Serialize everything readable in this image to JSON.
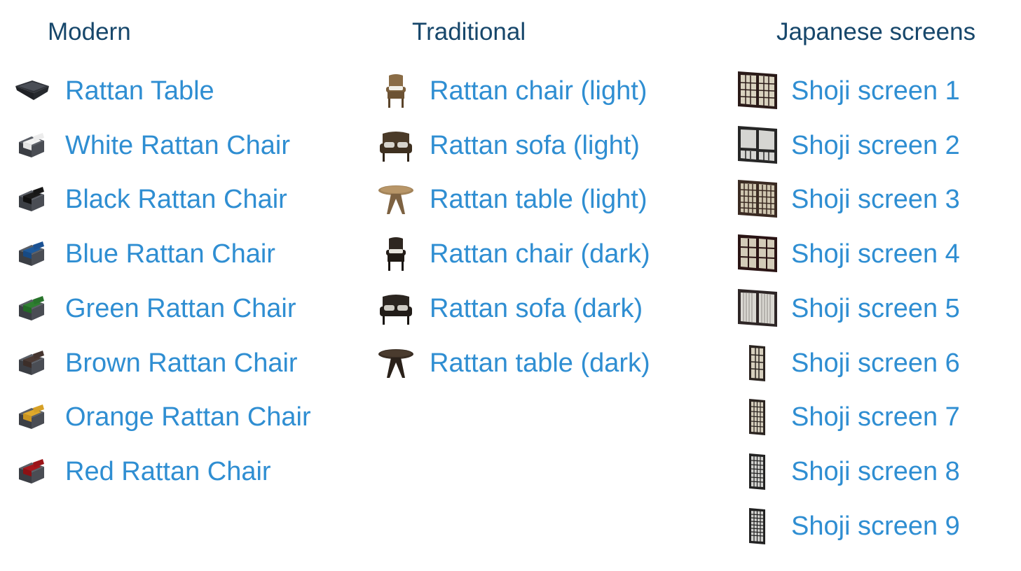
{
  "columns": [
    {
      "id": "modern",
      "title": "Modern",
      "items": [
        {
          "label": "Rattan Table",
          "icon": "rattan-table-modern-icon",
          "color": "#3a3d44"
        },
        {
          "label": "White Rattan Chair",
          "icon": "chair-white-icon",
          "color": "#f2f2f2"
        },
        {
          "label": "Black Rattan Chair",
          "icon": "chair-black-icon",
          "color": "#1b1b1b"
        },
        {
          "label": "Blue Rattan Chair",
          "icon": "chair-blue-icon",
          "color": "#1e5a9c"
        },
        {
          "label": "Green Rattan Chair",
          "icon": "chair-green-icon",
          "color": "#2e7f30"
        },
        {
          "label": "Brown Rattan Chair",
          "icon": "chair-brown-icon",
          "color": "#4b3a34"
        },
        {
          "label": "Orange Rattan Chair",
          "icon": "chair-orange-icon",
          "color": "#e0a92b"
        },
        {
          "label": "Red Rattan Chair",
          "icon": "chair-red-icon",
          "color": "#a8171b"
        }
      ]
    },
    {
      "id": "traditional",
      "title": "Traditional",
      "items": [
        {
          "label": "Rattan chair (light)",
          "icon": "rattan-chair-light-icon",
          "color": "#8a6c46"
        },
        {
          "label": "Rattan sofa (light)",
          "icon": "rattan-sofa-light-icon",
          "color": "#4a3a28"
        },
        {
          "label": "Rattan table (light)",
          "icon": "rattan-table-light-icon",
          "color": "#9a7a50"
        },
        {
          "label": "Rattan chair (dark)",
          "icon": "rattan-chair-dark-icon",
          "color": "#2e2620"
        },
        {
          "label": "Rattan sofa (dark)",
          "icon": "rattan-sofa-dark-icon",
          "color": "#2b2520"
        },
        {
          "label": "Rattan table (dark)",
          "icon": "rattan-table-dark-icon",
          "color": "#3a2e24"
        }
      ]
    },
    {
      "id": "japanese",
      "title": "Japanese screens",
      "items": [
        {
          "label": "Shoji screen 1",
          "icon": "shoji-screen-1-icon",
          "color": "#2a1a18"
        },
        {
          "label": "Shoji screen 2",
          "icon": "shoji-screen-2-icon",
          "color": "#262626"
        },
        {
          "label": "Shoji screen 3",
          "icon": "shoji-screen-3-icon",
          "color": "#3a2a22"
        },
        {
          "label": "Shoji screen 4",
          "icon": "shoji-screen-4-icon",
          "color": "#2a1414"
        },
        {
          "label": "Shoji screen 5",
          "icon": "shoji-screen-5-icon",
          "color": "#2e2626"
        },
        {
          "label": "Shoji screen 6",
          "icon": "shoji-screen-6-icon",
          "color": "#2b2420"
        },
        {
          "label": "Shoji screen 7",
          "icon": "shoji-screen-7-icon",
          "color": "#2b2420"
        },
        {
          "label": "Shoji screen 8",
          "icon": "shoji-screen-8-icon",
          "color": "#222222"
        },
        {
          "label": "Shoji screen 9",
          "icon": "shoji-screen-9-icon",
          "color": "#222222"
        }
      ]
    }
  ],
  "colors": {
    "header_text": "#17476b",
    "link_text": "#2f8ed2",
    "background": "#ffffff"
  }
}
